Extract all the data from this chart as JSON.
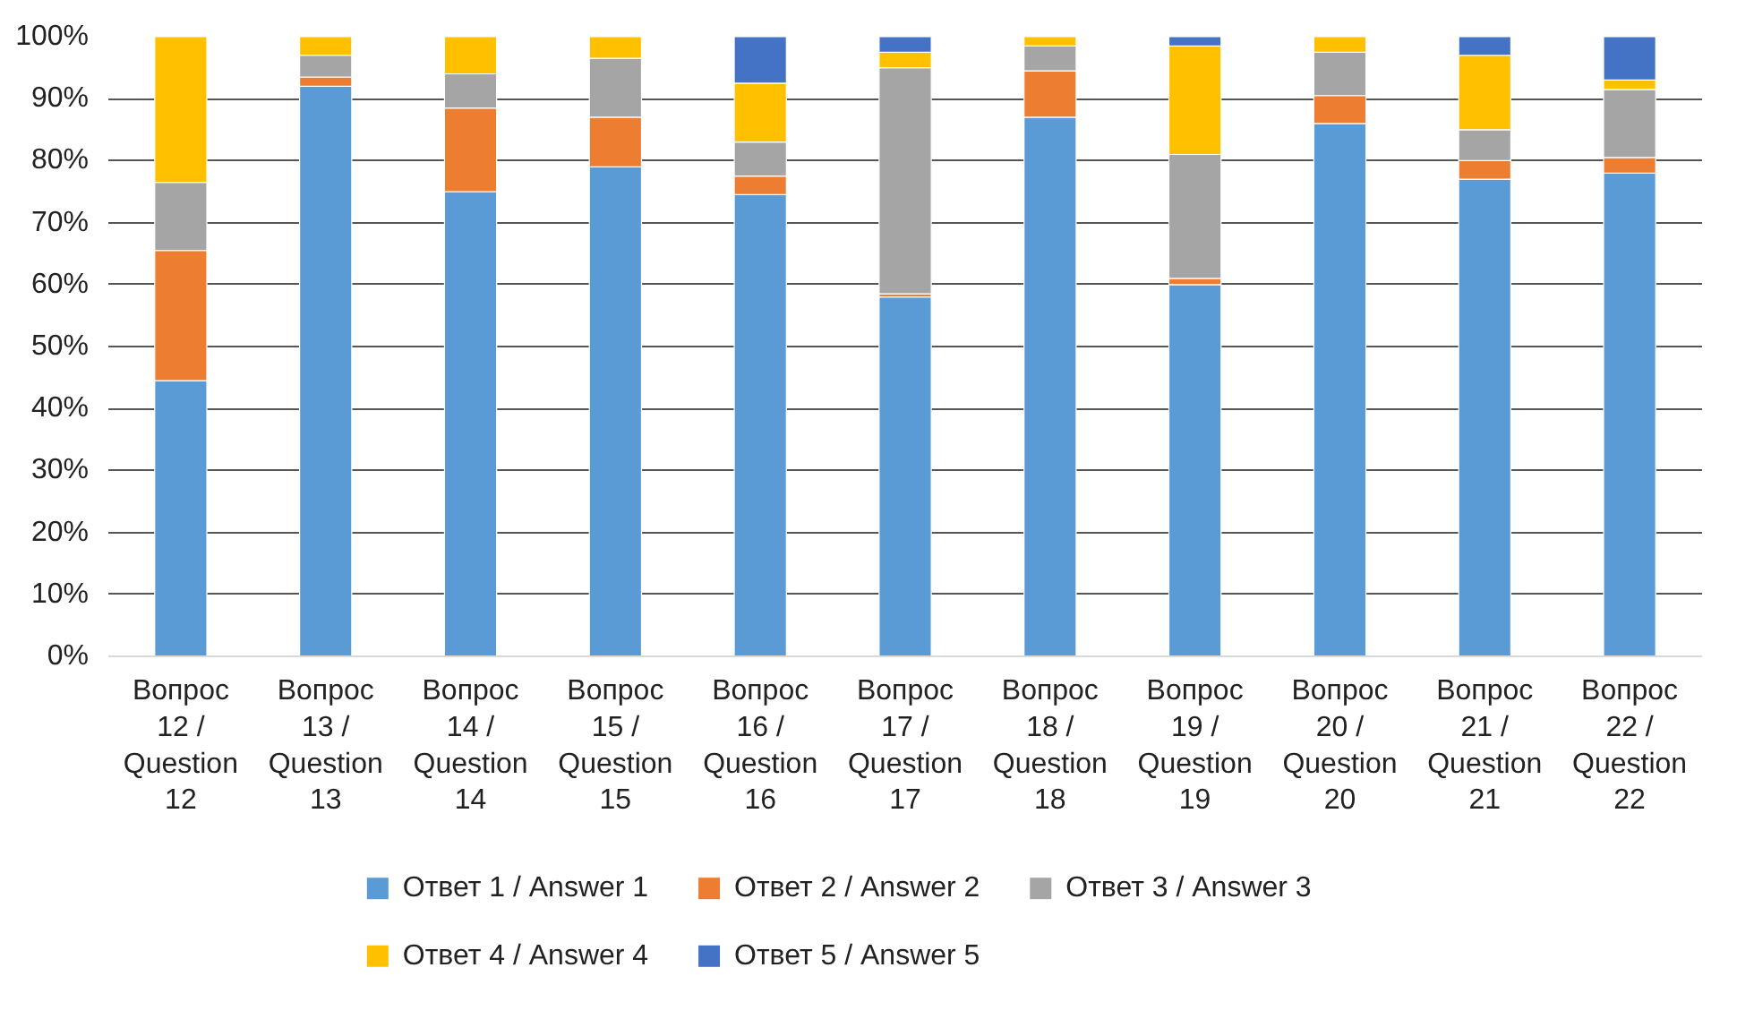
{
  "chart_data": {
    "type": "bar",
    "stacked": true,
    "categories": [
      "Вопрос\n12 /\nQuestion\n12",
      "Вопрос\n13 /\nQuestion\n13",
      "Вопрос\n14 /\nQuestion\n14",
      "Вопрос\n15 /\nQuestion\n15",
      "Вопрос\n16 /\nQuestion\n16",
      "Вопрос\n17 /\nQuestion\n17",
      "Вопрос\n18 /\nQuestion\n18",
      "Вопрос\n19 /\nQuestion\n19",
      "Вопрос\n20 /\nQuestion\n20",
      "Вопрос\n21 /\nQuestion\n21",
      "Вопрос\n22 /\nQuestion\n22"
    ],
    "series": [
      {
        "name": "Ответ 1 / Answer 1",
        "color": "#5b9bd5",
        "values": [
          44.5,
          92,
          75,
          79,
          74.5,
          58,
          87,
          60,
          86,
          77,
          78
        ]
      },
      {
        "name": "Ответ 2 / Answer 2",
        "color": "#ed7d31",
        "values": [
          21,
          1.5,
          13.5,
          8,
          3,
          0.5,
          7.5,
          1,
          4.5,
          3,
          2.5
        ]
      },
      {
        "name": "Ответ 3 / Answer 3",
        "color": "#a5a5a5",
        "values": [
          11,
          3.5,
          5.5,
          9.5,
          5.5,
          36.5,
          4,
          20,
          7,
          5,
          11
        ]
      },
      {
        "name": "Ответ 4 / Answer 4",
        "color": "#ffc000",
        "values": [
          23.5,
          3,
          6,
          3.5,
          9.5,
          2.5,
          1.5,
          17.5,
          2.5,
          12,
          1.5
        ]
      },
      {
        "name": "Ответ 5 / Answer 5",
        "color": "#4472c4",
        "values": [
          0,
          0,
          0,
          0,
          7.5,
          2.5,
          0,
          1.5,
          0,
          3,
          7
        ]
      }
    ],
    "ylim": [
      0,
      100
    ],
    "yticks": [
      {
        "value": 0,
        "label": "0%"
      },
      {
        "value": 10,
        "label": "10%"
      },
      {
        "value": 20,
        "label": "20%"
      },
      {
        "value": 30,
        "label": "30%"
      },
      {
        "value": 40,
        "label": "40%"
      },
      {
        "value": 50,
        "label": "50%"
      },
      {
        "value": 60,
        "label": "60%"
      },
      {
        "value": 70,
        "label": "70%"
      },
      {
        "value": 80,
        "label": "80%"
      },
      {
        "value": 90,
        "label": "90%"
      },
      {
        "value": 100,
        "label": "100%"
      }
    ],
    "grid": "y",
    "legend": "bottom"
  }
}
